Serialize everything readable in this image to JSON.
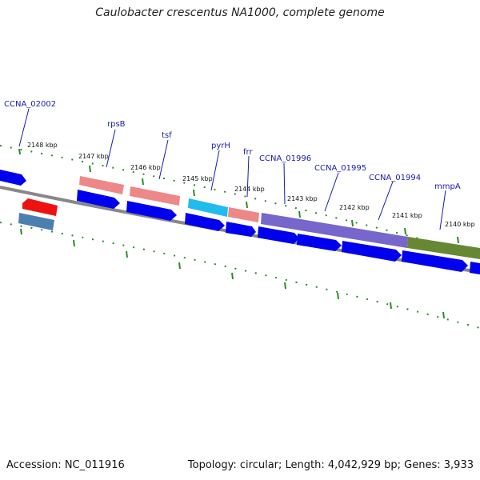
{
  "title": "Caulobacter crescentus NA1000, complete genome",
  "accession": "Accession: NC_011916",
  "summary": "Topology: circular; Length: 4,042,929 bp; Genes: 3,933",
  "kbp_ticks": [
    "2148 kbp",
    "2147 kbp",
    "2146 kbp",
    "2145 kbp",
    "2144 kbp",
    "2143 kbp",
    "2142 kbp",
    "2141 kbp",
    "2140 kbp"
  ],
  "gene_labels": [
    "CCNA_02002",
    "rpsB",
    "tsf",
    "pyrH",
    "frr",
    "CCNA_01996",
    "CCNA_01995",
    "CCNA_01994",
    "mmpA"
  ],
  "colors": {
    "cds": "#0000ee",
    "rpsB": "#ee8888",
    "tsf": "#ee8888",
    "pyrH": "#22bbee",
    "frr": "#ee8888",
    "block_purple": "#7766cc",
    "block_green": "#668833",
    "red_gene": "#ee1111",
    "steel_gene": "#4a7fb0",
    "backbone": "#888888",
    "tick": "#2a8a2a",
    "label": "#1a1ab0"
  }
}
